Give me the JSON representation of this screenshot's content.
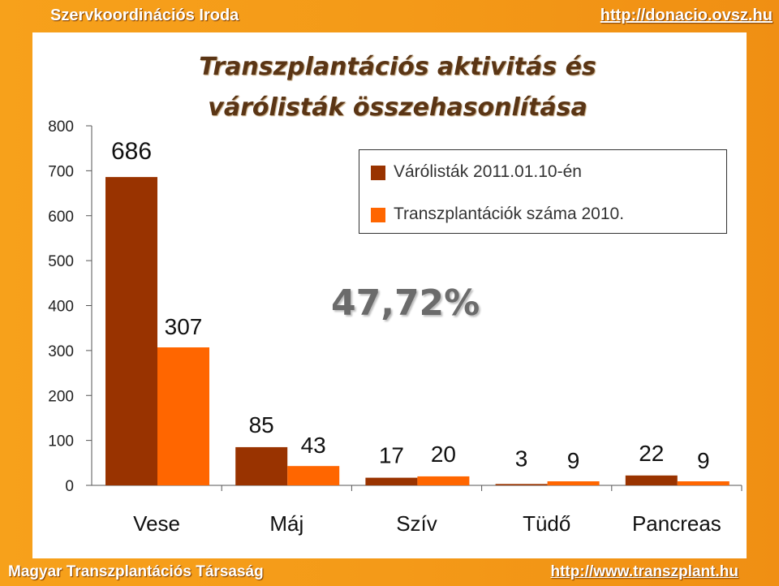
{
  "header": {
    "left_text": "Szervkoordinációs Iroda",
    "right_text": "http://donacio.ovsz.hu"
  },
  "footer": {
    "left_text": "Magyar Transzplantációs Társaság",
    "right_text": "http://www.transzplant.hu"
  },
  "colors": {
    "series1": "#993300",
    "series2": "#ff6600",
    "frame": "#f39a18"
  },
  "chart_data": {
    "type": "bar",
    "title_line1": "Transzplantációs aktivitás és",
    "title_line2": "várólisták összehasonlítása",
    "categories": [
      "Vese",
      "Máj",
      "Szív",
      "Tüdő",
      "Pancreas"
    ],
    "series": [
      {
        "name": "Várólisták 2011.01.10-én",
        "values": [
          686,
          85,
          17,
          3,
          22
        ]
      },
      {
        "name": "Transzplantációk száma 2010.",
        "values": [
          307,
          43,
          20,
          9,
          9
        ]
      }
    ],
    "ylim": [
      0,
      800
    ],
    "yticks": [
      "0",
      "100",
      "200",
      "300",
      "400",
      "500",
      "600",
      "700",
      "800"
    ],
    "legend_position": "top-right",
    "annotation": "47,72%"
  }
}
